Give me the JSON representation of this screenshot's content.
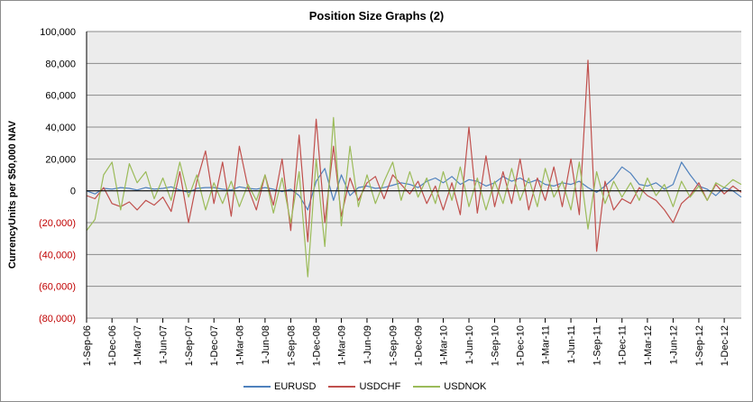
{
  "chart_data": {
    "type": "line",
    "title": "Position Size Graphs (2)",
    "ylabel": "CurrencyUnits per $50,000 NAV",
    "xlabel": "",
    "ylim": [
      -80000,
      100000
    ],
    "yticks": [
      {
        "value": 100000,
        "label": "100,000"
      },
      {
        "value": 80000,
        "label": "80,000"
      },
      {
        "value": 60000,
        "label": "60,000"
      },
      {
        "value": 40000,
        "label": "40,000"
      },
      {
        "value": 20000,
        "label": "20,000"
      },
      {
        "value": 0,
        "label": "0"
      },
      {
        "value": -20000,
        "label": "(20,000)"
      },
      {
        "value": -40000,
        "label": "(40,000)"
      },
      {
        "value": -60000,
        "label": "(60,000)"
      },
      {
        "value": -80000,
        "label": "(80,000)"
      }
    ],
    "xlim": [
      "2006-09-01",
      "2013-01-31"
    ],
    "xticks": [
      {
        "date": "2006-09-01",
        "label": "1-Sep-06"
      },
      {
        "date": "2006-12-01",
        "label": "1-Dec-06"
      },
      {
        "date": "2007-03-01",
        "label": "1-Mar-07"
      },
      {
        "date": "2007-06-01",
        "label": "1-Jun-07"
      },
      {
        "date": "2007-09-01",
        "label": "1-Sep-07"
      },
      {
        "date": "2007-12-01",
        "label": "1-Dec-07"
      },
      {
        "date": "2008-03-01",
        "label": "1-Mar-08"
      },
      {
        "date": "2008-06-01",
        "label": "1-Jun-08"
      },
      {
        "date": "2008-09-01",
        "label": "1-Sep-08"
      },
      {
        "date": "2008-12-01",
        "label": "1-Dec-08"
      },
      {
        "date": "2009-03-01",
        "label": "1-Mar-09"
      },
      {
        "date": "2009-06-01",
        "label": "1-Jun-09"
      },
      {
        "date": "2009-09-01",
        "label": "1-Sep-09"
      },
      {
        "date": "2009-12-01",
        "label": "1-Dec-09"
      },
      {
        "date": "2010-03-01",
        "label": "1-Mar-10"
      },
      {
        "date": "2010-06-01",
        "label": "1-Jun-10"
      },
      {
        "date": "2010-09-01",
        "label": "1-Sep-10"
      },
      {
        "date": "2010-12-01",
        "label": "1-Dec-10"
      },
      {
        "date": "2011-03-01",
        "label": "1-Mar-11"
      },
      {
        "date": "2011-06-01",
        "label": "1-Jun-11"
      },
      {
        "date": "2011-09-01",
        "label": "1-Sep-11"
      },
      {
        "date": "2011-12-01",
        "label": "1-Dec-11"
      },
      {
        "date": "2012-03-01",
        "label": "1-Mar-12"
      },
      {
        "date": "2012-06-01",
        "label": "1-Jun-12"
      },
      {
        "date": "2012-09-01",
        "label": "1-Sep-12"
      },
      {
        "date": "2012-12-01",
        "label": "1-Dec-12"
      }
    ],
    "grid": true,
    "legend_position": "bottom",
    "colors": {
      "plot_bg": "#ececec",
      "gridline": "#8a8a8a",
      "positive_label": "#000000",
      "negative_label": "#c00000"
    },
    "series": [
      {
        "name": "EURUSD",
        "color": "#4f81bd",
        "points": [
          [
            "2006-09-01",
            0
          ],
          [
            "2006-10-01",
            -2000
          ],
          [
            "2006-11-01",
            1500
          ],
          [
            "2006-12-01",
            1000
          ],
          [
            "2007-01-01",
            2000
          ],
          [
            "2007-02-01",
            1500
          ],
          [
            "2007-03-01",
            500
          ],
          [
            "2007-04-01",
            2000
          ],
          [
            "2007-05-01",
            1000
          ],
          [
            "2007-06-01",
            1500
          ],
          [
            "2007-07-01",
            2500
          ],
          [
            "2007-08-01",
            500
          ],
          [
            "2007-09-01",
            -1000
          ],
          [
            "2007-10-01",
            1500
          ],
          [
            "2007-11-01",
            2000
          ],
          [
            "2007-12-01",
            2000
          ],
          [
            "2008-01-01",
            1000
          ],
          [
            "2008-02-01",
            500
          ],
          [
            "2008-03-01",
            2500
          ],
          [
            "2008-04-01",
            1500
          ],
          [
            "2008-05-01",
            1000
          ],
          [
            "2008-06-01",
            2000
          ],
          [
            "2008-07-01",
            1000
          ],
          [
            "2008-08-01",
            -500
          ],
          [
            "2008-09-01",
            1000
          ],
          [
            "2008-10-01",
            -3000
          ],
          [
            "2008-11-01",
            -12000
          ],
          [
            "2008-12-01",
            6000
          ],
          [
            "2009-01-01",
            14000
          ],
          [
            "2009-02-01",
            -6000
          ],
          [
            "2009-03-01",
            10000
          ],
          [
            "2009-04-01",
            -3000
          ],
          [
            "2009-05-01",
            2000
          ],
          [
            "2009-06-01",
            3000
          ],
          [
            "2009-07-01",
            1500
          ],
          [
            "2009-08-01",
            2000
          ],
          [
            "2009-09-01",
            3500
          ],
          [
            "2009-10-01",
            5000
          ],
          [
            "2009-11-01",
            4000
          ],
          [
            "2009-12-01",
            2000
          ],
          [
            "2010-01-01",
            6000
          ],
          [
            "2010-02-01",
            8000
          ],
          [
            "2010-03-01",
            5000
          ],
          [
            "2010-04-01",
            9000
          ],
          [
            "2010-05-01",
            4000
          ],
          [
            "2010-06-01",
            7000
          ],
          [
            "2010-07-01",
            6000
          ],
          [
            "2010-08-01",
            3000
          ],
          [
            "2010-09-01",
            5000
          ],
          [
            "2010-10-01",
            9000
          ],
          [
            "2010-11-01",
            6000
          ],
          [
            "2010-12-01",
            8000
          ],
          [
            "2011-01-01",
            5000
          ],
          [
            "2011-02-01",
            7000
          ],
          [
            "2011-03-01",
            4000
          ],
          [
            "2011-04-01",
            3000
          ],
          [
            "2011-05-01",
            5000
          ],
          [
            "2011-06-01",
            4000
          ],
          [
            "2011-07-01",
            6000
          ],
          [
            "2011-08-01",
            2000
          ],
          [
            "2011-09-01",
            -1000
          ],
          [
            "2011-10-01",
            3000
          ],
          [
            "2011-11-01",
            8000
          ],
          [
            "2011-12-01",
            15000
          ],
          [
            "2012-01-01",
            11000
          ],
          [
            "2012-02-01",
            4000
          ],
          [
            "2012-03-01",
            3000
          ],
          [
            "2012-04-01",
            5000
          ],
          [
            "2012-05-01",
            1000
          ],
          [
            "2012-06-01",
            4000
          ],
          [
            "2012-07-01",
            18000
          ],
          [
            "2012-08-01",
            10000
          ],
          [
            "2012-09-01",
            3000
          ],
          [
            "2012-10-01",
            1000
          ],
          [
            "2012-11-01",
            -3000
          ],
          [
            "2012-12-01",
            2000
          ],
          [
            "2013-01-01",
            0
          ],
          [
            "2013-01-31",
            -4000
          ]
        ]
      },
      {
        "name": "USDCHF",
        "color": "#c0504d",
        "points": [
          [
            "2006-09-01",
            -3000
          ],
          [
            "2006-10-01",
            -5000
          ],
          [
            "2006-11-01",
            2000
          ],
          [
            "2006-12-01",
            -8000
          ],
          [
            "2007-01-01",
            -10000
          ],
          [
            "2007-02-01",
            -7000
          ],
          [
            "2007-03-01",
            -12000
          ],
          [
            "2007-04-01",
            -6000
          ],
          [
            "2007-05-01",
            -9000
          ],
          [
            "2007-06-01",
            -4000
          ],
          [
            "2007-07-01",
            -13000
          ],
          [
            "2007-08-01",
            12000
          ],
          [
            "2007-09-01",
            -20000
          ],
          [
            "2007-10-01",
            6000
          ],
          [
            "2007-11-01",
            25000
          ],
          [
            "2007-12-01",
            -8000
          ],
          [
            "2008-01-01",
            18000
          ],
          [
            "2008-02-01",
            -16000
          ],
          [
            "2008-03-01",
            28000
          ],
          [
            "2008-04-01",
            2000
          ],
          [
            "2008-05-01",
            -12000
          ],
          [
            "2008-06-01",
            10000
          ],
          [
            "2008-07-01",
            -9000
          ],
          [
            "2008-08-01",
            20000
          ],
          [
            "2008-09-01",
            -25000
          ],
          [
            "2008-10-01",
            35000
          ],
          [
            "2008-11-01",
            -32000
          ],
          [
            "2008-12-01",
            45000
          ],
          [
            "2009-01-01",
            -20000
          ],
          [
            "2009-02-01",
            28000
          ],
          [
            "2009-03-01",
            -16000
          ],
          [
            "2009-04-01",
            8000
          ],
          [
            "2009-05-01",
            -6000
          ],
          [
            "2009-06-01",
            5000
          ],
          [
            "2009-07-01",
            9000
          ],
          [
            "2009-08-01",
            -5000
          ],
          [
            "2009-09-01",
            10000
          ],
          [
            "2009-10-01",
            4000
          ],
          [
            "2009-11-01",
            -2000
          ],
          [
            "2009-12-01",
            6000
          ],
          [
            "2010-01-01",
            -8000
          ],
          [
            "2010-02-01",
            3000
          ],
          [
            "2010-03-01",
            -12000
          ],
          [
            "2010-04-01",
            5000
          ],
          [
            "2010-05-01",
            -15000
          ],
          [
            "2010-06-01",
            40000
          ],
          [
            "2010-07-01",
            -14000
          ],
          [
            "2010-08-01",
            22000
          ],
          [
            "2010-09-01",
            -10000
          ],
          [
            "2010-10-01",
            12000
          ],
          [
            "2010-11-01",
            -8000
          ],
          [
            "2010-12-01",
            20000
          ],
          [
            "2011-01-01",
            -12000
          ],
          [
            "2011-02-01",
            8000
          ],
          [
            "2011-03-01",
            -6000
          ],
          [
            "2011-04-01",
            15000
          ],
          [
            "2011-05-01",
            -10000
          ],
          [
            "2011-06-01",
            20000
          ],
          [
            "2011-07-01",
            -15000
          ],
          [
            "2011-08-01",
            82000
          ],
          [
            "2011-09-01",
            -38000
          ],
          [
            "2011-10-01",
            6000
          ],
          [
            "2011-11-01",
            -12000
          ],
          [
            "2011-12-01",
            -5000
          ],
          [
            "2012-01-01",
            -8000
          ],
          [
            "2012-02-01",
            2000
          ],
          [
            "2012-03-01",
            -3000
          ],
          [
            "2012-04-01",
            -6000
          ],
          [
            "2012-05-01",
            -12000
          ],
          [
            "2012-06-01",
            -20000
          ],
          [
            "2012-07-01",
            -8000
          ],
          [
            "2012-08-01",
            -3000
          ],
          [
            "2012-09-01",
            5000
          ],
          [
            "2012-10-01",
            -6000
          ],
          [
            "2012-11-01",
            4000
          ],
          [
            "2012-12-01",
            -2000
          ],
          [
            "2013-01-01",
            3000
          ],
          [
            "2013-01-31",
            -1000
          ]
        ]
      },
      {
        "name": "USDNOK",
        "color": "#9bbb59",
        "points": [
          [
            "2006-09-01",
            -25000
          ],
          [
            "2006-10-01",
            -18000
          ],
          [
            "2006-11-01",
            10000
          ],
          [
            "2006-12-01",
            18000
          ],
          [
            "2007-01-01",
            -12000
          ],
          [
            "2007-02-01",
            17000
          ],
          [
            "2007-03-01",
            5000
          ],
          [
            "2007-04-01",
            12000
          ],
          [
            "2007-05-01",
            -5000
          ],
          [
            "2007-06-01",
            8000
          ],
          [
            "2007-07-01",
            -6000
          ],
          [
            "2007-08-01",
            18000
          ],
          [
            "2007-09-01",
            -4000
          ],
          [
            "2007-10-01",
            10000
          ],
          [
            "2007-11-01",
            -12000
          ],
          [
            "2007-12-01",
            5000
          ],
          [
            "2008-01-01",
            -8000
          ],
          [
            "2008-02-01",
            6000
          ],
          [
            "2008-03-01",
            -10000
          ],
          [
            "2008-04-01",
            4000
          ],
          [
            "2008-05-01",
            -6000
          ],
          [
            "2008-06-01",
            10000
          ],
          [
            "2008-07-01",
            -14000
          ],
          [
            "2008-08-01",
            8000
          ],
          [
            "2008-09-01",
            -20000
          ],
          [
            "2008-10-01",
            12000
          ],
          [
            "2008-11-01",
            -54000
          ],
          [
            "2008-12-01",
            20000
          ],
          [
            "2009-01-01",
            -35000
          ],
          [
            "2009-02-01",
            46000
          ],
          [
            "2009-03-01",
            -22000
          ],
          [
            "2009-04-01",
            28000
          ],
          [
            "2009-05-01",
            -10000
          ],
          [
            "2009-06-01",
            10000
          ],
          [
            "2009-07-01",
            -8000
          ],
          [
            "2009-08-01",
            6000
          ],
          [
            "2009-09-01",
            18000
          ],
          [
            "2009-10-01",
            -6000
          ],
          [
            "2009-11-01",
            12000
          ],
          [
            "2009-12-01",
            -4000
          ],
          [
            "2010-01-01",
            8000
          ],
          [
            "2010-02-01",
            -8000
          ],
          [
            "2010-03-01",
            12000
          ],
          [
            "2010-04-01",
            -6000
          ],
          [
            "2010-05-01",
            15000
          ],
          [
            "2010-06-01",
            -10000
          ],
          [
            "2010-07-01",
            8000
          ],
          [
            "2010-08-01",
            -12000
          ],
          [
            "2010-09-01",
            6000
          ],
          [
            "2010-10-01",
            -8000
          ],
          [
            "2010-11-01",
            14000
          ],
          [
            "2010-12-01",
            -6000
          ],
          [
            "2011-01-01",
            8000
          ],
          [
            "2011-02-01",
            -10000
          ],
          [
            "2011-03-01",
            14000
          ],
          [
            "2011-04-01",
            -4000
          ],
          [
            "2011-05-01",
            6000
          ],
          [
            "2011-06-01",
            -12000
          ],
          [
            "2011-07-01",
            18000
          ],
          [
            "2011-08-01",
            -24000
          ],
          [
            "2011-09-01",
            12000
          ],
          [
            "2011-10-01",
            -8000
          ],
          [
            "2011-11-01",
            6000
          ],
          [
            "2011-12-01",
            -4000
          ],
          [
            "2012-01-01",
            5000
          ],
          [
            "2012-02-01",
            -6000
          ],
          [
            "2012-03-01",
            8000
          ],
          [
            "2012-04-01",
            -3000
          ],
          [
            "2012-05-01",
            4000
          ],
          [
            "2012-06-01",
            -10000
          ],
          [
            "2012-07-01",
            6000
          ],
          [
            "2012-08-01",
            -4000
          ],
          [
            "2012-09-01",
            3000
          ],
          [
            "2012-10-01",
            -6000
          ],
          [
            "2012-11-01",
            5000
          ],
          [
            "2012-12-01",
            2000
          ],
          [
            "2013-01-01",
            7000
          ],
          [
            "2013-01-31",
            4000
          ]
        ]
      }
    ]
  }
}
